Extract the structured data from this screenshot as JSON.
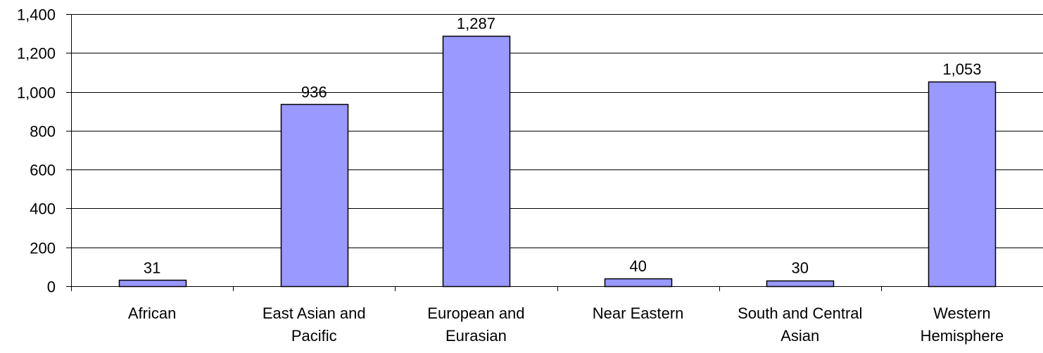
{
  "chart_data": {
    "type": "bar",
    "categories": [
      [
        "African"
      ],
      [
        "East Asian and",
        "Pacific"
      ],
      [
        "European and",
        "Eurasian"
      ],
      [
        "Near Eastern"
      ],
      [
        "South and Central",
        "Asian"
      ],
      [
        "Western",
        "Hemisphere"
      ]
    ],
    "values": [
      31,
      936,
      1287,
      40,
      30,
      1053
    ],
    "value_labels": [
      "31",
      "936",
      "1,287",
      "40",
      "30",
      "1,053"
    ],
    "ylim": [
      0,
      1400
    ],
    "yticks": [
      0,
      200,
      400,
      600,
      800,
      1000,
      1200,
      1400
    ],
    "ytick_labels": [
      "0",
      "200",
      "400",
      "600",
      "800",
      "1,000",
      "1,200",
      "1,400"
    ],
    "grid": true,
    "colors": {
      "bar_fill": "#9999ff",
      "bar_stroke": "#000000",
      "gridline": "#000000",
      "axis": "#000000"
    },
    "title": "",
    "xlabel": "",
    "ylabel": ""
  }
}
